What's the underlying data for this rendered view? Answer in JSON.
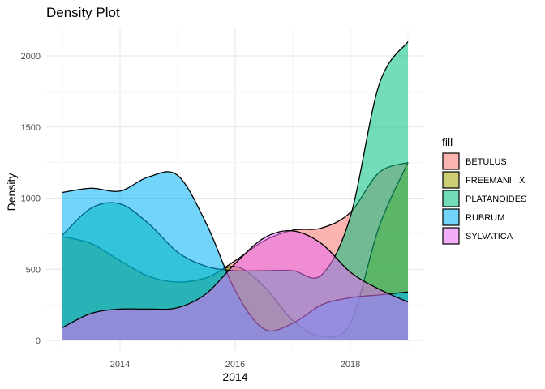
{
  "chart_data": {
    "type": "area",
    "title": "Density Plot",
    "xlabel": "2014",
    "ylabel": "Density",
    "xlim": [
      2013,
      2019
    ],
    "ylim": [
      0,
      2200
    ],
    "x_ticks": [
      2014,
      2016,
      2018
    ],
    "x_tick_labels": [
      "2014",
      "2016",
      "2018"
    ],
    "y_ticks": [
      0,
      500,
      1000,
      1500,
      2000
    ],
    "y_tick_labels": [
      "0",
      "500",
      "1000",
      "1500",
      "2000"
    ],
    "grid": true,
    "legend": {
      "title": "fill",
      "position": "right"
    },
    "series": [
      {
        "name": "BETULUS",
        "color": "#F8766D",
        "x": [
          2013,
          2013.5,
          2014,
          2014.5,
          2015,
          2015.5,
          2016,
          2016.5,
          2017,
          2017.5,
          2018,
          2018.5,
          2019
        ],
        "y": [
          730,
          680,
          560,
          450,
          410,
          440,
          560,
          700,
          775,
          790,
          900,
          1180,
          1250
        ]
      },
      {
        "name": "FREEMANI   X",
        "color": "#A3A500",
        "x": [
          2013,
          2013.5,
          2014,
          2014.5,
          2015,
          2015.5,
          2016,
          2016.5,
          2017,
          2017.5,
          2018,
          2018.5,
          2019
        ],
        "y": [
          730,
          680,
          560,
          450,
          410,
          440,
          520,
          380,
          140,
          30,
          120,
          800,
          1250
        ]
      },
      {
        "name": "PLATANOIDES",
        "color": "#00BF7D",
        "x": [
          2013,
          2013.5,
          2014,
          2014.5,
          2015,
          2015.5,
          2016,
          2016.5,
          2017,
          2017.5,
          2018,
          2018.5,
          2019
        ],
        "y": [
          740,
          930,
          960,
          820,
          620,
          520,
          490,
          490,
          490,
          460,
          870,
          1800,
          2100
        ]
      },
      {
        "name": "RUBRUM",
        "color": "#00B0F6",
        "x": [
          2013,
          2013.5,
          2014,
          2014.5,
          2015,
          2015.5,
          2016,
          2016.5,
          2017,
          2017.5,
          2018,
          2018.5,
          2019
        ],
        "y": [
          1040,
          1070,
          1050,
          1150,
          1160,
          820,
          350,
          80,
          120,
          250,
          300,
          320,
          340
        ]
      },
      {
        "name": "SYLVATICA",
        "color": "#E76BF3",
        "x": [
          2013,
          2013.5,
          2014,
          2014.5,
          2015,
          2015.5,
          2016,
          2016.5,
          2017,
          2017.5,
          2018,
          2018.5,
          2019
        ],
        "y": [
          90,
          190,
          220,
          220,
          230,
          330,
          540,
          720,
          770,
          680,
          480,
          360,
          270
        ]
      }
    ]
  }
}
